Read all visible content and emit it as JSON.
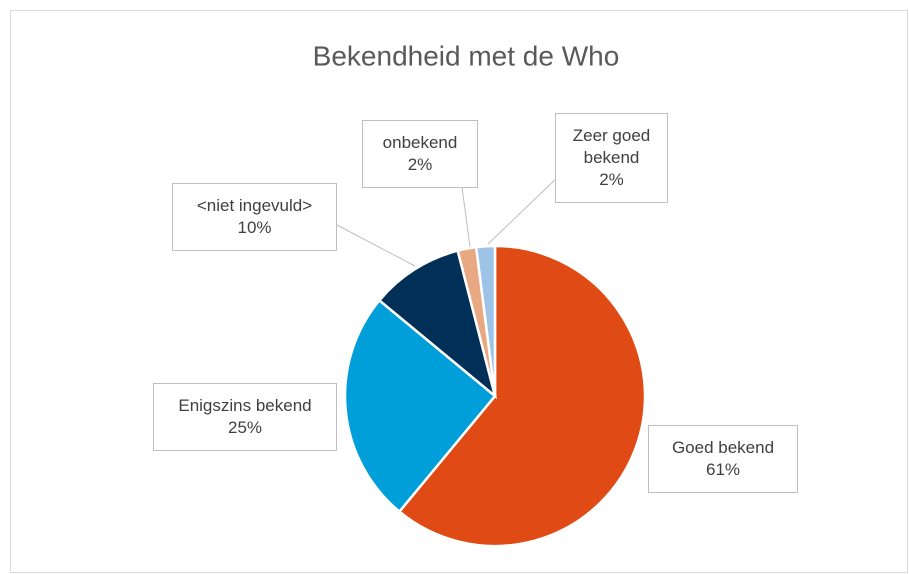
{
  "chart_data": {
    "type": "pie",
    "title": "Bekendheid met de Who",
    "categories": [
      "Goed bekend",
      "Enigszins bekend",
      "<niet ingevuld>",
      "onbekend",
      "Zeer goed bekend"
    ],
    "values": [
      61,
      25,
      10,
      2,
      2
    ],
    "value_labels": [
      "61%",
      "25%",
      "10%",
      "2%",
      "2%"
    ],
    "colors": [
      "#E04A14",
      "#009FDA",
      "#003057",
      "#E8A882",
      "#9DC3E6"
    ]
  }
}
